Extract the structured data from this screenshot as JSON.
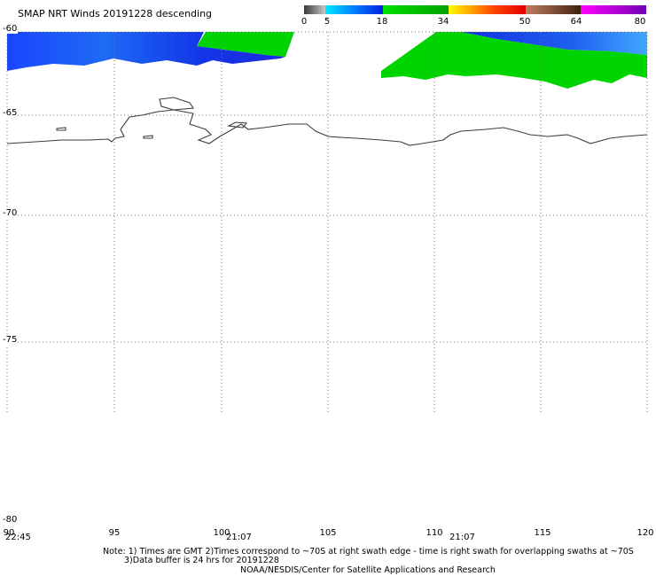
{
  "title": "SMAP NRT Winds  20191228 descending",
  "colorbar": {
    "ticks": [
      "0",
      "5",
      "18",
      "34",
      "50",
      "64",
      "80"
    ],
    "segments": [
      {
        "from": 0,
        "to": 5,
        "color": "#555555"
      },
      {
        "from": 5,
        "to": 18,
        "color": "#1060ff"
      },
      {
        "from": 18,
        "to": 34,
        "color": "#00c000"
      },
      {
        "from": 34,
        "to": 50,
        "color": "#ff5020"
      },
      {
        "from": 50,
        "to": 64,
        "color": "#8a5040"
      },
      {
        "from": 64,
        "to": 80,
        "color": "#b000e0"
      }
    ]
  },
  "map": {
    "lat_labels": [
      "-60",
      "-65",
      "-70",
      "-75",
      "-80"
    ],
    "lon_labels": [
      "90",
      "95",
      "100",
      "105",
      "110",
      "115",
      "120"
    ],
    "lat_range": [
      -80,
      -60
    ],
    "lon_range": [
      90,
      120
    ],
    "swath_times": [
      "22:45",
      "21:07",
      "21:07"
    ],
    "colors": {
      "blue_swath": "#1a3cf0",
      "light_blue": "#3aa0ff",
      "green_swath": "#00d400",
      "coastline": "#404040",
      "grid": "#808080"
    }
  },
  "notes": {
    "line1": "Note: 1) Times are GMT 2)Times correspond to ~70S at right swath edge - time is right swath for overlapping swaths at ~70S",
    "line2": "3)Data buffer is 24 hrs for 20191228",
    "line3": "NOAA/NESDIS/Center for Satellite Applications and Research"
  }
}
